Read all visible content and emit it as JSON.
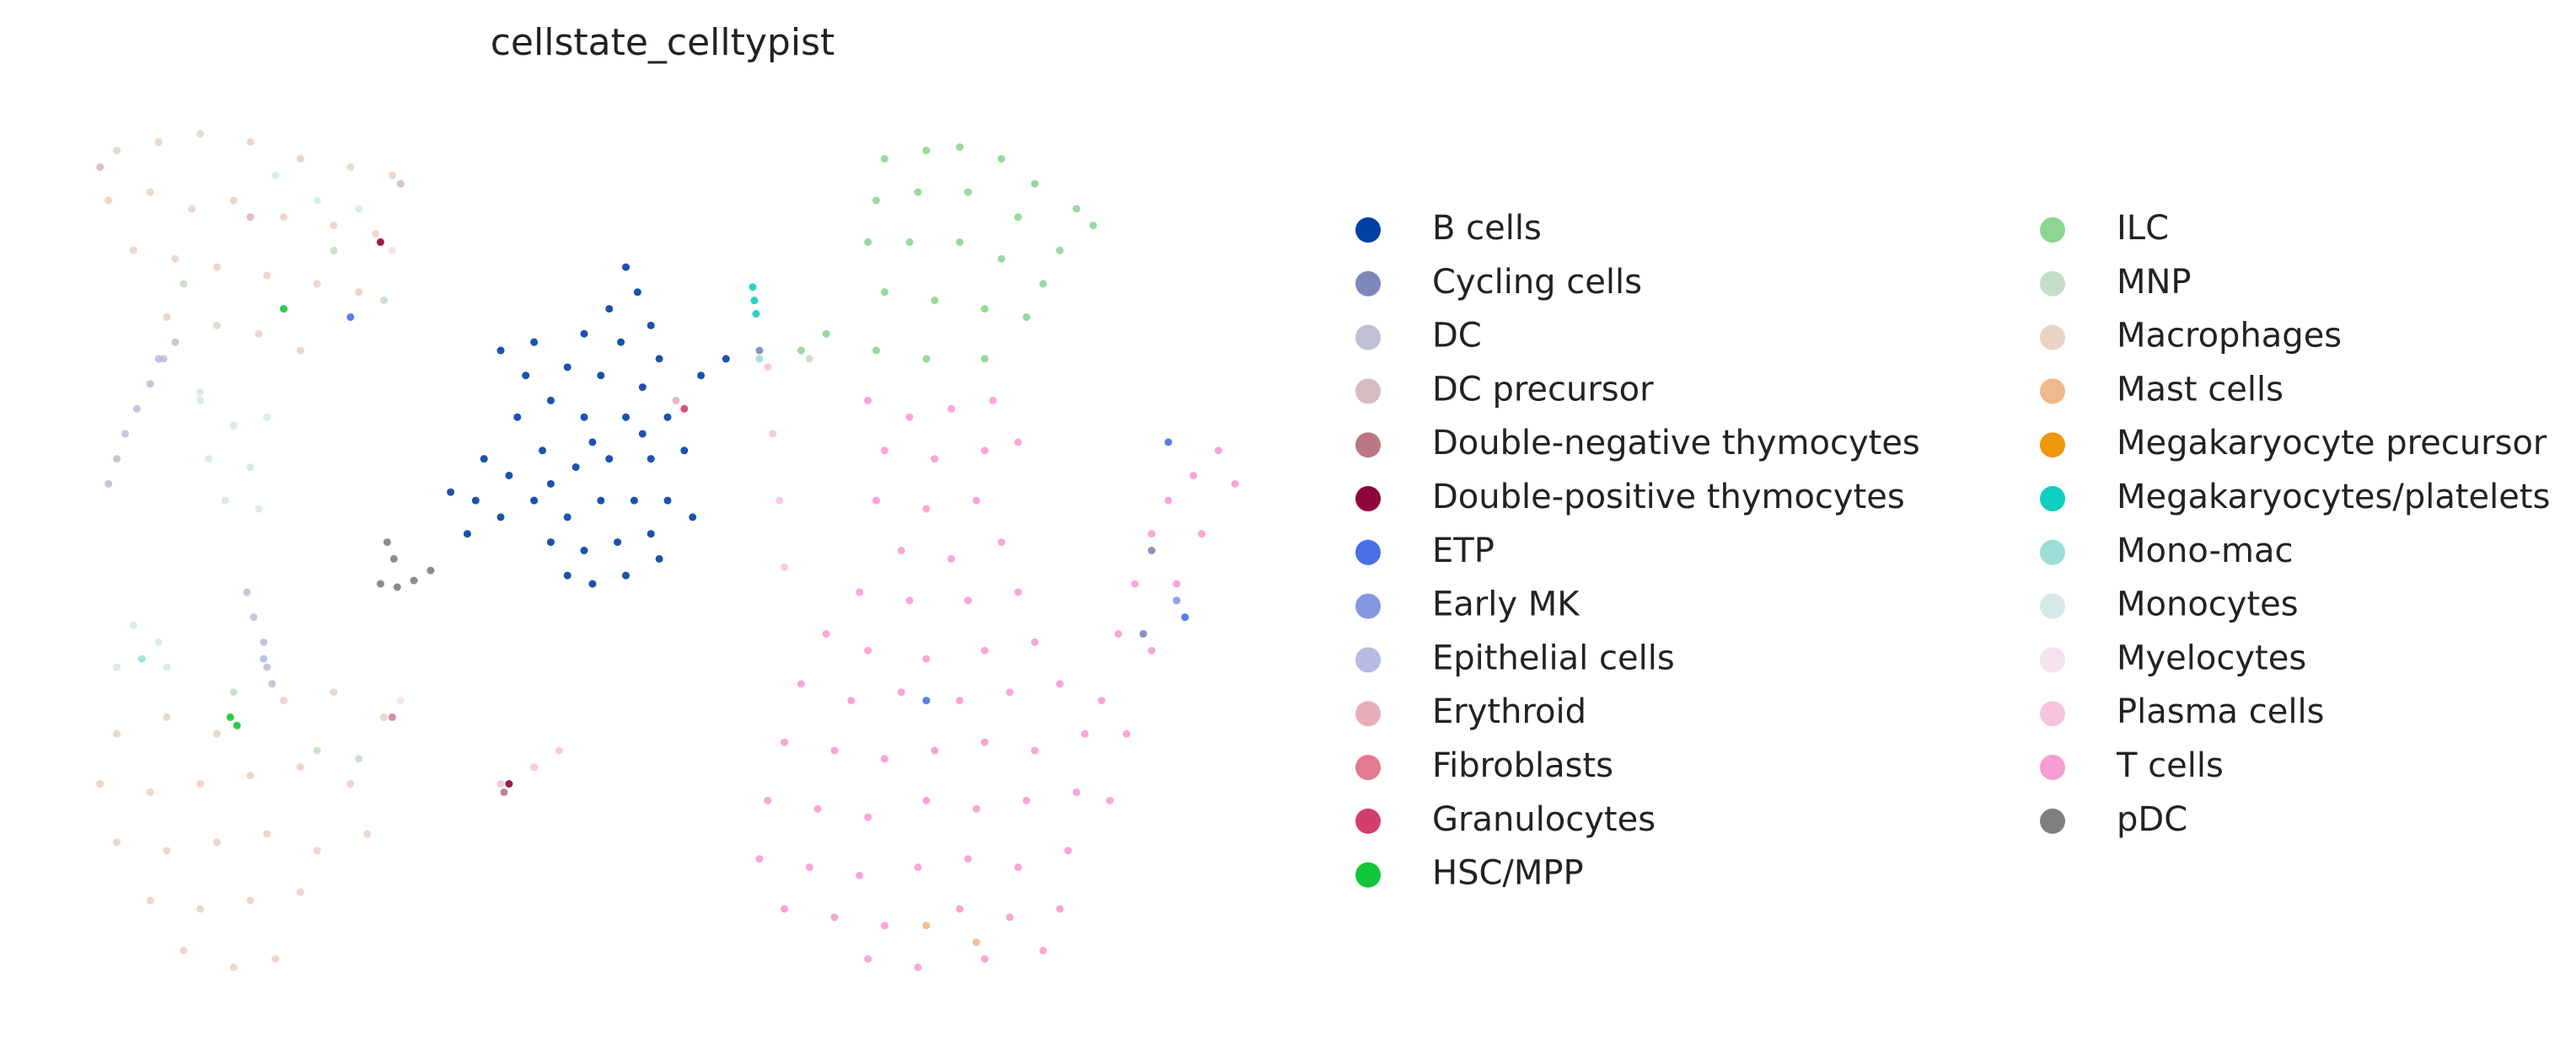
{
  "chart_data": {
    "type": "scatter",
    "title": "cellstate_celltypist",
    "xlim": [
      50,
      750
    ],
    "ylim": [
      590,
      70
    ],
    "series": [
      {
        "name": "B cells",
        "color": "#023fa5",
        "x": [
          375,
          382,
          365,
          390,
          350,
          372,
          395,
          340,
          360,
          385,
          300,
          315,
          330,
          350,
          375,
          400,
          420,
          435,
          310,
          290,
          270,
          285,
          305,
          325,
          345,
          365,
          390,
          410,
          300,
          320,
          340,
          360,
          380,
          400,
          350,
          370,
          390,
          355,
          375,
          340,
          330,
          280,
          395,
          415,
          320,
          385,
          355,
          330
        ],
        "y": [
          160,
          175,
          185,
          195,
          200,
          205,
          215,
          220,
          225,
          232,
          210,
          225,
          240,
          250,
          250,
          250,
          225,
          215,
          250,
          275,
          295,
          300,
          285,
          270,
          280,
          275,
          275,
          270,
          310,
          300,
          310,
          300,
          300,
          300,
          330,
          325,
          320,
          350,
          345,
          345,
          325,
          320,
          335,
          310,
          205,
          260,
          265,
          290
        ]
      },
      {
        "name": "Cycling cells",
        "color": "#7d87b9",
        "x": [
          690,
          685,
          455
        ],
        "y": [
          330,
          380,
          210
        ]
      },
      {
        "name": "DC",
        "color": "#bec1d4",
        "x": [
          65,
          70,
          75,
          82,
          90,
          98,
          105,
          148,
          152,
          158,
          160,
          163
        ],
        "y": [
          290,
          275,
          260,
          245,
          230,
          215,
          205,
          355,
          370,
          385,
          400,
          410
        ]
      },
      {
        "name": "DC precursor",
        "color": "#d6bcc0",
        "x": [
          60,
          240
        ],
        "y": [
          100,
          110
        ]
      },
      {
        "name": "Double-negative thymocytes",
        "color": "#bb7784",
        "x": [
          302
        ],
        "y": [
          475
        ]
      },
      {
        "name": "Double-positive thymocytes",
        "color": "#8e063b",
        "x": [
          305,
          228
        ],
        "y": [
          470,
          145
        ]
      },
      {
        "name": "ETP",
        "color": "#4a6fe3",
        "x": [
          210,
          700,
          710,
          555
        ],
        "y": [
          190,
          265,
          370,
          420
        ]
      },
      {
        "name": "Early MK",
        "color": "#8595e1",
        "x": [
          705
        ],
        "y": [
          360
        ]
      },
      {
        "name": "Epithelial cells",
        "color": "#b5bbe3",
        "x": [
          158,
          95
        ],
        "y": [
          395,
          215
        ]
      },
      {
        "name": "Erythroid",
        "color": "#e6afb9",
        "x": [
          405,
          150
        ],
        "y": [
          240,
          130
        ]
      },
      {
        "name": "Fibroblasts",
        "color": "#e07b91",
        "x": [
          235
        ],
        "y": [
          430
        ]
      },
      {
        "name": "Granulocytes",
        "color": "#d33f6a",
        "x": [
          410
        ],
        "y": [
          245
        ]
      },
      {
        "name": "HSC/MPP",
        "color": "#11c638",
        "x": [
          138,
          142,
          170
        ],
        "y": [
          430,
          435,
          185
        ]
      },
      {
        "name": "ILC",
        "color": "#8dd593",
        "x": [
          530,
          555,
          575,
          600,
          620,
          645,
          655,
          525,
          550,
          580,
          610,
          635,
          520,
          545,
          575,
          600,
          625,
          530,
          560,
          590,
          615,
          525,
          555,
          590,
          480,
          495
        ],
        "y": [
          95,
          90,
          88,
          95,
          110,
          125,
          135,
          120,
          115,
          115,
          130,
          150,
          145,
          145,
          145,
          155,
          170,
          175,
          180,
          185,
          190,
          210,
          215,
          215,
          210,
          200
        ]
      },
      {
        "name": "MNP",
        "color": "#c6dec7",
        "x": [
          110,
          200,
          140,
          190,
          215,
          230,
          485
        ],
        "y": [
          170,
          150,
          415,
          450,
          455,
          180,
          215
        ]
      },
      {
        "name": "Macrophages",
        "color": "#ead3c6",
        "x": [
          70,
          95,
          120,
          150,
          180,
          210,
          235,
          65,
          90,
          115,
          140,
          170,
          200,
          225,
          80,
          105,
          130,
          160,
          190,
          215,
          100,
          130,
          155,
          180,
          70,
          100,
          130,
          170,
          200,
          230,
          60,
          90,
          120,
          150,
          180,
          210,
          70,
          100,
          130,
          160,
          190,
          220,
          90,
          120,
          150,
          180,
          110,
          140,
          165
        ],
        "y": [
          90,
          85,
          80,
          85,
          95,
          100,
          105,
          120,
          115,
          125,
          120,
          130,
          135,
          140,
          150,
          155,
          160,
          165,
          170,
          175,
          190,
          195,
          200,
          210,
          440,
          430,
          440,
          420,
          415,
          430,
          470,
          475,
          470,
          465,
          460,
          470,
          505,
          510,
          505,
          500,
          510,
          500,
          540,
          545,
          540,
          535,
          570,
          580,
          575
        ]
      },
      {
        "name": "Mast cells",
        "color": "#f0b98d",
        "x": [
          555,
          585
        ],
        "y": [
          555,
          565
        ]
      },
      {
        "name": "Megakaryocyte precursor",
        "color": "#ef9708",
        "x": [],
        "y": []
      },
      {
        "name": "Megakaryocytes/platelets",
        "color": "#0fcfc0",
        "x": [
          451,
          452,
          453
        ],
        "y": [
          172,
          180,
          188
        ]
      },
      {
        "name": "Mono-mac",
        "color": "#9cded6",
        "x": [
          455,
          85
        ],
        "y": [
          215,
          395
        ]
      },
      {
        "name": "Monocytes",
        "color": "#d5eae7",
        "x": [
          165,
          190,
          215,
          120,
          140,
          160,
          125,
          150,
          135,
          155,
          80,
          95,
          70,
          100,
          120
        ],
        "y": [
          105,
          120,
          125,
          240,
          255,
          250,
          275,
          280,
          300,
          305,
          375,
          385,
          400,
          400,
          235
        ]
      },
      {
        "name": "Myelocytes",
        "color": "#f3e1eb",
        "x": [
          235,
          240
        ],
        "y": [
          150,
          420
        ]
      },
      {
        "name": "Plasma cells",
        "color": "#f6c4e1",
        "x": [
          460,
          463,
          467,
          470,
          300,
          320,
          335
        ],
        "y": [
          220,
          260,
          300,
          340,
          470,
          460,
          450
        ]
      },
      {
        "name": "T cells",
        "color": "#f79cd4",
        "x": [
          520,
          545,
          570,
          595,
          530,
          560,
          590,
          610,
          525,
          555,
          585,
          540,
          570,
          600,
          515,
          545,
          580,
          610,
          495,
          520,
          555,
          590,
          620,
          480,
          510,
          540,
          575,
          605,
          635,
          470,
          500,
          530,
          560,
          590,
          620,
          650,
          460,
          490,
          520,
          555,
          585,
          615,
          645,
          455,
          485,
          515,
          550,
          580,
          610,
          640,
          470,
          500,
          530,
          575,
          605,
          635,
          520,
          550,
          590,
          625,
          660,
          670,
          680,
          690,
          700,
          715,
          730,
          740,
          720,
          705,
          690,
          675,
          665
        ],
        "y": [
          240,
          250,
          245,
          240,
          270,
          275,
          270,
          265,
          300,
          305,
          300,
          330,
          335,
          325,
          355,
          360,
          360,
          355,
          380,
          390,
          395,
          390,
          385,
          410,
          420,
          415,
          420,
          415,
          410,
          445,
          450,
          455,
          450,
          445,
          450,
          440,
          480,
          485,
          490,
          480,
          485,
          480,
          475,
          515,
          520,
          525,
          520,
          515,
          520,
          510,
          545,
          550,
          555,
          545,
          550,
          545,
          575,
          580,
          575,
          570,
          420,
          380,
          350,
          320,
          300,
          285,
          270,
          290,
          320,
          350,
          390,
          440,
          480
        ]
      },
      {
        "name": "pDC",
        "color": "#7f7f7f",
        "x": [
          228,
          238,
          248,
          258,
          232,
          236
        ],
        "y": [
          350,
          352,
          348,
          342,
          325,
          335
        ]
      }
    ]
  }
}
